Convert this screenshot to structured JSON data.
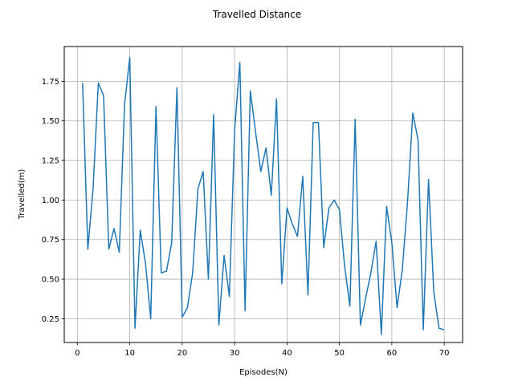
{
  "chart_data": {
    "type": "line",
    "title": "Travelled Distance",
    "xlabel": "Episodes(N)",
    "ylabel": "Travelled(m)",
    "xlim": [
      -2.5,
      73.5
    ],
    "ylim": [
      0.1,
      1.97
    ],
    "xticks": [
      0,
      10,
      20,
      30,
      40,
      50,
      60,
      70
    ],
    "yticks": [
      0.25,
      0.5,
      0.75,
      1.0,
      1.25,
      1.5,
      1.75
    ],
    "ytick_labels": [
      "0.25",
      "0.50",
      "0.75",
      "1.00",
      "1.25",
      "1.50",
      "1.75"
    ],
    "grid": true,
    "series": [
      {
        "color": "#1f77b4",
        "x": [
          1,
          2,
          3,
          4,
          5,
          6,
          7,
          8,
          9,
          10,
          11,
          12,
          13,
          14,
          15,
          16,
          17,
          18,
          19,
          20,
          21,
          22,
          23,
          24,
          25,
          26,
          27,
          28,
          29,
          30,
          31,
          32,
          33,
          34,
          35,
          36,
          37,
          38,
          39,
          40,
          41,
          42,
          43,
          44,
          45,
          46,
          47,
          48,
          49,
          50,
          51,
          52,
          53,
          54,
          55,
          56,
          57,
          58,
          59,
          60,
          61,
          62,
          63,
          64,
          65,
          66,
          67,
          68,
          69,
          70
        ],
        "values": [
          1.74,
          0.69,
          1.07,
          1.74,
          1.66,
          0.69,
          0.82,
          0.67,
          1.6,
          1.9,
          0.19,
          0.81,
          0.6,
          0.25,
          1.59,
          0.54,
          0.55,
          0.73,
          1.71,
          0.26,
          0.32,
          0.54,
          1.07,
          1.18,
          0.5,
          1.54,
          0.21,
          0.65,
          0.39,
          1.44,
          1.87,
          0.3,
          1.69,
          1.43,
          1.18,
          1.33,
          1.03,
          1.64,
          0.47,
          0.95,
          0.85,
          0.77,
          1.15,
          0.4,
          1.49,
          1.49,
          0.7,
          0.95,
          1.0,
          0.94,
          0.58,
          0.33,
          1.51,
          0.21,
          0.38,
          0.54,
          0.74,
          0.15,
          0.96,
          0.73,
          0.32,
          0.56,
          0.99,
          1.55,
          1.38,
          0.18,
          1.13,
          0.42,
          0.19,
          0.18
        ]
      }
    ]
  }
}
